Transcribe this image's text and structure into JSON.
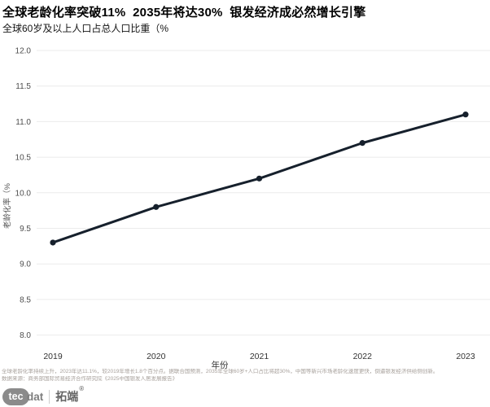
{
  "page": {
    "title": "全球老龄化率突破11%  2035年将达30%  银发经济成必然增长引擎",
    "subtitle": "全球60岁及以上人口占总人口比重（%",
    "footnote_line1": "全球老龄化率持续上升，2023年达11.1%，较2019年增长1.8个百分点。据联合国预测，2035年全球60岁+人口占比将超30%，中国等新兴市场老龄化速度更快，倒逼银发经济供给侧创新。",
    "footnote_line2": "数据来源：商务部国际贸易经济合作研究院《2025中国银发人居发展报告》",
    "logo": {
      "tec": "tec",
      "dat": "dat",
      "brand": "拓端",
      "reg": "®"
    }
  },
  "chart_data": {
    "type": "line",
    "x": [
      "2019",
      "2020",
      "2021",
      "2022",
      "2023"
    ],
    "series": [
      {
        "name": "老龄化率",
        "values": [
          9.3,
          9.8,
          10.2,
          10.7,
          11.1
        ]
      }
    ],
    "title": "全球60岁及以上人口占总人口比重（%）",
    "xlabel": "年份",
    "ylabel": "老龄化率（%",
    "ylim": [
      8.0,
      12.0
    ],
    "ytick_step": 0.5,
    "ytick_format_decimals": 1,
    "grid": "horizontal",
    "legend": "none",
    "colors": {
      "line": "#16202c",
      "marker": "#16202c",
      "gridline": "#ebebeb",
      "tick_label": "#4d4d4d",
      "axis_label": "#333333"
    }
  }
}
